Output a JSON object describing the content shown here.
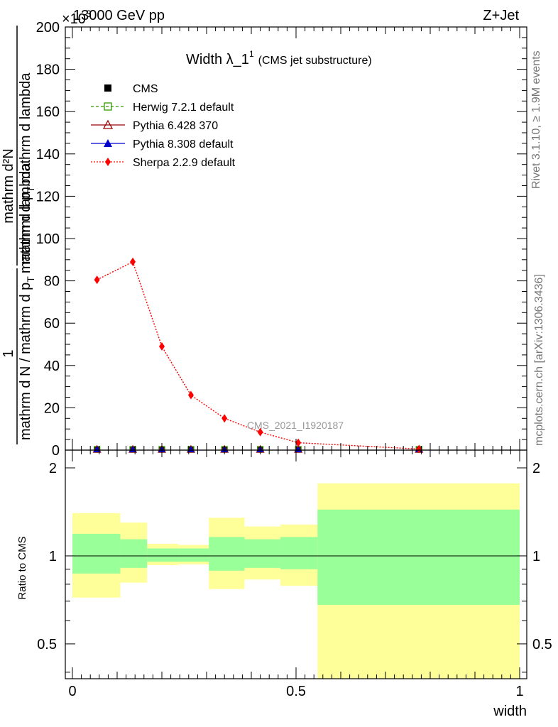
{
  "header": {
    "energy_label": "13000 GeV pp",
    "process_label": "Z+Jet",
    "exponent_label": "×10",
    "exponent_power": "3"
  },
  "side_labels": {
    "rivet": "Rivet 3.1.10, ≥ 1.9M events",
    "mcplots": "mcplots.cern.ch [arXiv:1306.3436]"
  },
  "chart_data": [
    {
      "type": "line",
      "title": "Width λ_1",
      "title_superscript": "1",
      "title_suffix": "(CMS jet substructure)",
      "analysis_label": "CMS_2021_I1920187",
      "ylabel_numerator": "1",
      "ylabel_denominator": "mathrm d N / mathrm d p",
      "ylabel_denominator_sub": "T",
      "ylabel_denominator_tail": "mathrm d lambda",
      "ylabel_top_numerator": "mathrm d²N",
      "ylabel_top_denominator": "mathrm d p",
      "ylabel_top_denominator_sub": "T",
      "ylabel_top_denominator_tail": "mathrm d lambda",
      "xlim": [
        0,
        1
      ],
      "ylim": [
        0,
        200
      ],
      "y_ticks": [
        0,
        20,
        40,
        60,
        80,
        100,
        120,
        140,
        160,
        180,
        200
      ],
      "x": [
        0.055,
        0.135,
        0.2,
        0.265,
        0.34,
        0.42,
        0.505,
        0.775
      ],
      "legend": [
        "CMS",
        "Herwig 7.2.1 default",
        "Pythia 6.428 370",
        "Pythia 8.308 default",
        "Sherpa 2.2.9 default"
      ],
      "series": [
        {
          "name": "CMS",
          "color": "#000000",
          "marker": "square-filled",
          "values": [
            0.3,
            0.3,
            0.3,
            0.3,
            0.3,
            0.3,
            0.3,
            0.3
          ]
        },
        {
          "name": "Herwig 7.2.1 default",
          "color": "#339900",
          "marker": "square-open",
          "values": [
            0.3,
            0.3,
            0.3,
            0.3,
            0.3,
            0.3,
            0.3,
            0.3
          ]
        },
        {
          "name": "Pythia 6.428 370",
          "color": "#990000",
          "marker": "triangle-open",
          "values": [
            0.3,
            0.3,
            0.3,
            0.3,
            0.3,
            0.3,
            0.3,
            0.3
          ]
        },
        {
          "name": "Pythia 8.308 default",
          "color": "#0000cc",
          "marker": "triangle-filled",
          "values": [
            0.3,
            0.3,
            0.3,
            0.3,
            0.3,
            0.3,
            0.3,
            0.3
          ]
        },
        {
          "name": "Sherpa 2.2.9 default",
          "color": "#ff0000",
          "marker": "diamond-filled",
          "values": [
            80.5,
            89,
            49,
            26,
            15,
            8.5,
            3.5,
            0.5
          ]
        }
      ]
    },
    {
      "type": "area",
      "ylabel": "Ratio to CMS",
      "xlabel": "width",
      "xlim": [
        0,
        1
      ],
      "ylim": [
        0.38,
        2.3
      ],
      "y_scale": "log",
      "y_ticks": [
        0.5,
        1,
        2
      ],
      "x_ticks": [
        0,
        0.5,
        1
      ],
      "bin_edges": [
        0,
        0.107,
        0.167,
        0.237,
        0.305,
        0.385,
        0.465,
        0.548,
        1.0
      ],
      "reference_line": 1,
      "bands": [
        {
          "name": "outer",
          "color": "#ffff99",
          "low": [
            0.72,
            0.81,
            0.93,
            0.935,
            0.77,
            0.83,
            0.79,
            0.35
          ],
          "high": [
            1.4,
            1.3,
            1.1,
            1.09,
            1.35,
            1.26,
            1.28,
            1.77
          ]
        },
        {
          "name": "inner",
          "color": "#99ff99",
          "low": [
            0.87,
            0.91,
            0.955,
            0.955,
            0.89,
            0.91,
            0.9,
            0.68
          ],
          "high": [
            1.19,
            1.14,
            1.06,
            1.06,
            1.16,
            1.14,
            1.16,
            1.44
          ]
        }
      ]
    }
  ]
}
